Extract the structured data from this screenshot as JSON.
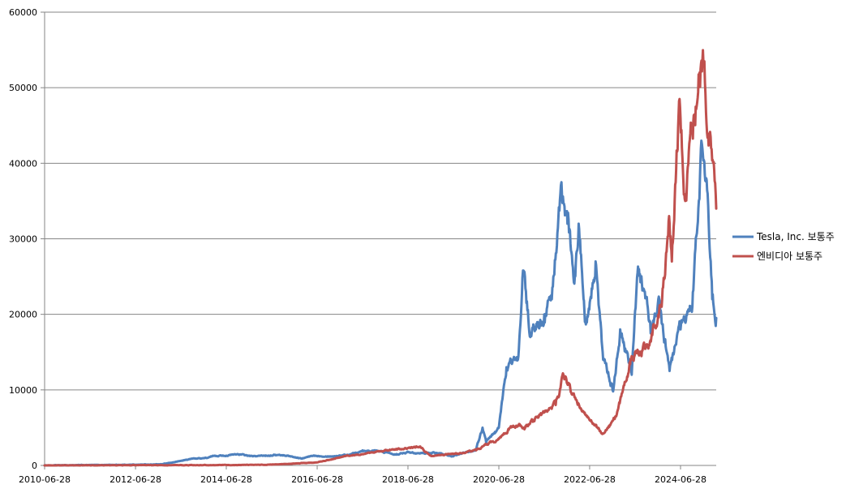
{
  "chart_data": {
    "type": "line",
    "title": "",
    "xlabel": "",
    "ylabel": "",
    "ylim": [
      0,
      60000
    ],
    "y_ticks": [
      0,
      10000,
      20000,
      30000,
      40000,
      50000,
      60000
    ],
    "x_range": [
      "2010-06-28",
      "2025-04-11"
    ],
    "x_ticks": [
      "2010-06-28",
      "2012-06-28",
      "2014-06-28",
      "2016-06-28",
      "2018-06-28",
      "2020-06-28",
      "2022-06-28",
      "2024-06-28"
    ],
    "grid": "horizontal",
    "legend_position": "right",
    "series": [
      {
        "name": "Tesla, Inc. 보통주",
        "color": "#4f81bd",
        "points": [
          [
            "2010-06-28",
            0
          ],
          [
            "2011-06-28",
            50
          ],
          [
            "2012-06-28",
            100
          ],
          [
            "2013-01-28",
            150
          ],
          [
            "2013-05-28",
            500
          ],
          [
            "2013-09-28",
            900
          ],
          [
            "2014-01-28",
            1000
          ],
          [
            "2014-03-28",
            1300
          ],
          [
            "2014-06-28",
            1300
          ],
          [
            "2014-09-28",
            1500
          ],
          [
            "2015-01-28",
            1200
          ],
          [
            "2015-07-28",
            1400
          ],
          [
            "2015-10-28",
            1300
          ],
          [
            "2016-02-28",
            900
          ],
          [
            "2016-05-28",
            1300
          ],
          [
            "2016-10-28",
            1200
          ],
          [
            "2017-03-28",
            1500
          ],
          [
            "2017-06-28",
            2000
          ],
          [
            "2017-10-28",
            1900
          ],
          [
            "2018-03-28",
            1500
          ],
          [
            "2018-06-28",
            1800
          ],
          [
            "2018-09-28",
            1600
          ],
          [
            "2019-01-28",
            1700
          ],
          [
            "2019-06-28",
            1200
          ],
          [
            "2019-12-28",
            2100
          ],
          [
            "2020-02-18",
            5000
          ],
          [
            "2020-03-18",
            3000
          ],
          [
            "2020-06-28",
            5000
          ],
          [
            "2020-08-28",
            13000
          ],
          [
            "2020-11-28",
            14000
          ],
          [
            "2021-01-08",
            25800
          ],
          [
            "2021-03-08",
            17000
          ],
          [
            "2021-06-28",
            20000
          ],
          [
            "2021-08-28",
            22000
          ],
          [
            "2021-11-05",
            36000
          ],
          [
            "2022-01-01",
            32000
          ],
          [
            "2022-03-01",
            25000
          ],
          [
            "2022-04-01",
            32000
          ],
          [
            "2022-05-25",
            19000
          ],
          [
            "2022-08-15",
            27000
          ],
          [
            "2022-10-15",
            14000
          ],
          [
            "2023-01-03",
            9800
          ],
          [
            "2023-03-01",
            18000
          ],
          [
            "2023-06-01",
            12000
          ],
          [
            "2023-07-18",
            25500
          ],
          [
            "2023-09-15",
            23000
          ],
          [
            "2023-11-01",
            17500
          ],
          [
            "2024-01-01",
            22000
          ],
          [
            "2024-04-01",
            12500
          ],
          [
            "2024-06-28",
            18000
          ],
          [
            "2024-10-01",
            21000
          ],
          [
            "2024-12-17",
            42500
          ],
          [
            "2025-02-01",
            36000
          ],
          [
            "2025-03-10",
            22000
          ],
          [
            "2025-04-11",
            19500
          ]
        ]
      },
      {
        "name": "엔비디아 보통주",
        "color": "#c0504d",
        "points": [
          [
            "2010-06-28",
            0
          ],
          [
            "2012-06-28",
            20
          ],
          [
            "2014-06-28",
            50
          ],
          [
            "2015-06-28",
            100
          ],
          [
            "2016-06-28",
            400
          ],
          [
            "2017-01-28",
            1200
          ],
          [
            "2017-06-28",
            1500
          ],
          [
            "2018-01-28",
            2000
          ],
          [
            "2018-06-28",
            2300
          ],
          [
            "2018-10-01",
            2500
          ],
          [
            "2018-12-28",
            1300
          ],
          [
            "2019-06-28",
            1500
          ],
          [
            "2019-12-28",
            2000
          ],
          [
            "2020-06-28",
            3500
          ],
          [
            "2020-09-28",
            5000
          ],
          [
            "2021-01-28",
            5200
          ],
          [
            "2021-06-28",
            7000
          ],
          [
            "2021-09-28",
            8000
          ],
          [
            "2021-11-29",
            12000
          ],
          [
            "2022-02-28",
            9000
          ],
          [
            "2022-06-28",
            6000
          ],
          [
            "2022-10-15",
            4200
          ],
          [
            "2023-01-28",
            6500
          ],
          [
            "2023-05-28",
            14000
          ],
          [
            "2023-09-28",
            16000
          ],
          [
            "2024-01-28",
            21000
          ],
          [
            "2024-03-28",
            33000
          ],
          [
            "2024-04-19",
            27000
          ],
          [
            "2024-06-20",
            48500
          ],
          [
            "2024-08-05",
            35000
          ],
          [
            "2024-10-01",
            45000
          ],
          [
            "2024-11-28",
            52000
          ],
          [
            "2025-01-06",
            53500
          ],
          [
            "2025-01-27",
            44000
          ],
          [
            "2025-03-01",
            42000
          ],
          [
            "2025-04-11",
            34000
          ]
        ]
      }
    ]
  }
}
